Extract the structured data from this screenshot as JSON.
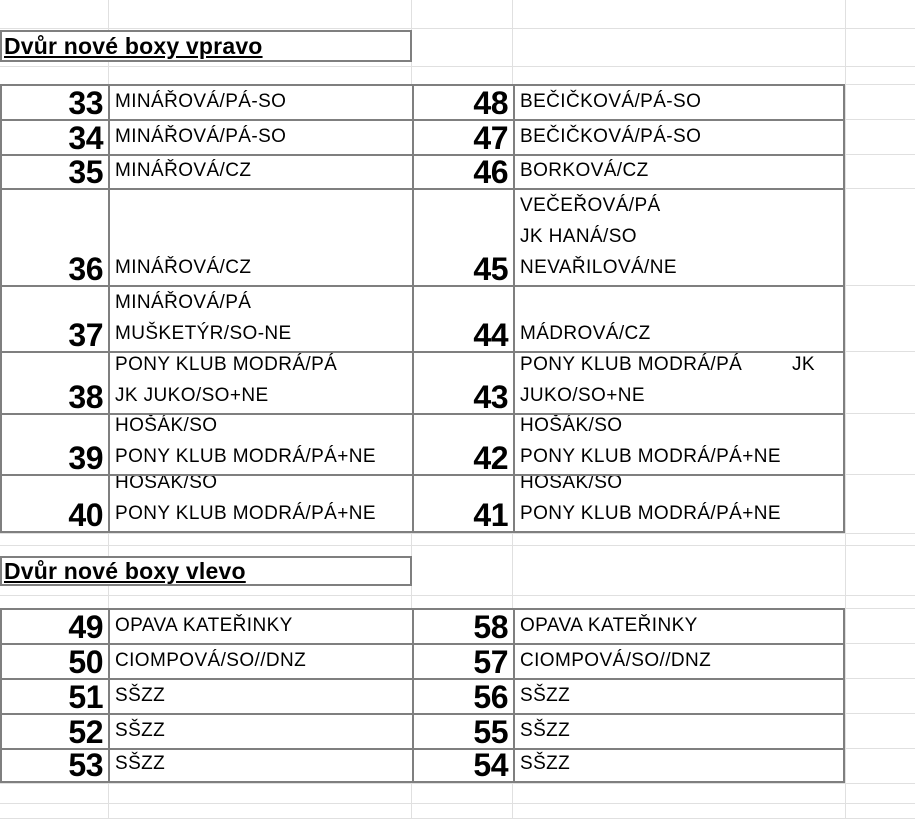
{
  "sections": [
    {
      "title": "Dvůr nové boxy vpravo",
      "rows": [
        {
          "left": {
            "num": "33",
            "lines": [
              "MINÁŘOVÁ/PÁ-SO"
            ]
          },
          "right": {
            "num": "48",
            "lines": [
              "BEČIČKOVÁ/PÁ-SO"
            ]
          }
        },
        {
          "left": {
            "num": "34",
            "lines": [
              "MINÁŘOVÁ/PÁ-SO"
            ]
          },
          "right": {
            "num": "47",
            "lines": [
              "BEČIČKOVÁ/PÁ-SO"
            ]
          }
        },
        {
          "left": {
            "num": "35",
            "lines": [
              "MINÁŘOVÁ/CZ"
            ]
          },
          "right": {
            "num": "46",
            "lines": [
              "BORKOVÁ/CZ"
            ]
          }
        },
        {
          "left": {
            "num": "36",
            "lines": [
              "MINÁŘOVÁ/CZ"
            ]
          },
          "right": {
            "num": "45",
            "lines": [
              "VEČEŘOVÁ/PÁ",
              "JK HANÁ/SO",
              "NEVAŘILOVÁ/NE"
            ]
          }
        },
        {
          "left": {
            "num": "37",
            "lines": [
              "MINÁŘOVÁ/PÁ",
              "MUŠKETÝR/SO-NE"
            ]
          },
          "right": {
            "num": "44",
            "lines": [
              "MÁDROVÁ/CZ"
            ]
          }
        },
        {
          "left": {
            "num": "38",
            "lines": [
              "PONY KLUB MODRÁ/PÁ",
              "JK JUKO/SO+NE"
            ]
          },
          "right": {
            "num": "43",
            "lines": [
              {
                "left": "PONY KLUB MODRÁ/PÁ",
                "right": "JK"
              },
              "JUKO/SO+NE"
            ]
          }
        },
        {
          "left": {
            "num": "39",
            "lines": [
              "HOŠÁK/SO",
              "PONY KLUB MODRÁ/PÁ+NE"
            ]
          },
          "right": {
            "num": "42",
            "lines": [
              "HOŠÁK/SO",
              "PONY KLUB MODRÁ/PÁ+NE"
            ]
          }
        },
        {
          "left": {
            "num": "40",
            "lines": [
              "HOŠÁK/SO",
              "PONY KLUB MODRÁ/PÁ+NE"
            ]
          },
          "right": {
            "num": "41",
            "lines": [
              "HOŠÁK/SO",
              "PONY KLUB MODRÁ/PÁ+NE"
            ]
          }
        }
      ]
    },
    {
      "title": "Dvůr nové boxy vlevo",
      "rows": [
        {
          "left": {
            "num": "49",
            "lines": [
              "OPAVA KATEŘINKY"
            ]
          },
          "right": {
            "num": "58",
            "lines": [
              "OPAVA KATEŘINKY"
            ]
          }
        },
        {
          "left": {
            "num": "50",
            "lines": [
              "CIOMPOVÁ/SO//DNZ"
            ]
          },
          "right": {
            "num": "57",
            "lines": [
              "CIOMPOVÁ/SO//DNZ"
            ]
          }
        },
        {
          "left": {
            "num": "51",
            "lines": [
              "SŠZZ"
            ]
          },
          "right": {
            "num": "56",
            "lines": [
              "SŠZZ"
            ]
          }
        },
        {
          "left": {
            "num": "52",
            "lines": [
              "SŠZZ"
            ]
          },
          "right": {
            "num": "55",
            "lines": [
              "SŠZZ"
            ]
          }
        },
        {
          "left": {
            "num": "53",
            "lines": [
              "SŠZZ"
            ]
          },
          "right": {
            "num": "54",
            "lines": [
              "SŠZZ"
            ]
          }
        }
      ]
    }
  ],
  "colors": {
    "border_dark": "#7f7f7f",
    "grid_faint": "#e0e0e0",
    "text": "#000000",
    "background": "#ffffff"
  }
}
